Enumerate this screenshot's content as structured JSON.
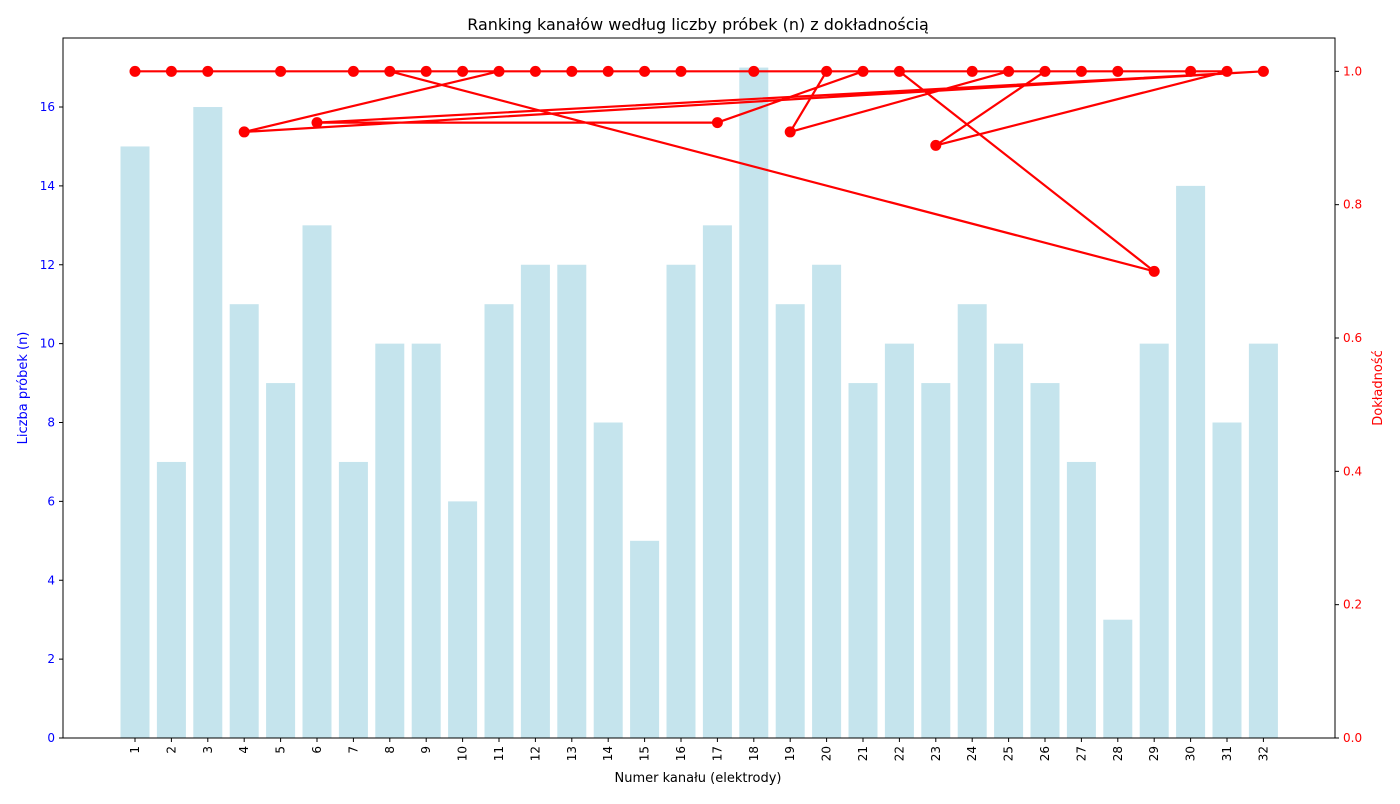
{
  "chart_data": {
    "type": "bar",
    "title": "Ranking kanałów według liczby próbek (n) z dokładnością",
    "xlabel": "Numer kanału (elektrody)",
    "ylabel_left": "Liczba próbek (n)",
    "ylabel_right": "Dokładność",
    "categories": [
      "1",
      "2",
      "3",
      "4",
      "5",
      "6",
      "7",
      "8",
      "9",
      "10",
      "11",
      "12",
      "13",
      "14",
      "15",
      "16",
      "17",
      "18",
      "19",
      "20",
      "21",
      "22",
      "23",
      "24",
      "25",
      "26",
      "27",
      "28",
      "29",
      "30",
      "31",
      "32"
    ],
    "bar_series": {
      "name": "Liczba próbek (n)",
      "color": "#add8e6",
      "values": [
        15,
        7,
        16,
        11,
        9,
        13,
        7,
        10,
        10,
        6,
        11,
        12,
        12,
        8,
        5,
        12,
        13,
        17,
        11,
        12,
        9,
        10,
        9,
        11,
        10,
        9,
        7,
        3,
        10,
        14,
        8,
        10
      ]
    },
    "line_series": {
      "name": "Dokładność",
      "color": "#ff0000",
      "axis": "right",
      "order": [
        18,
        1,
        3,
        2,
        5,
        7,
        8,
        29,
        22,
        14,
        9,
        10,
        16,
        12,
        13,
        15,
        11,
        4,
        32,
        6,
        17,
        21,
        24,
        26,
        23,
        31,
        30,
        28,
        27,
        25,
        19,
        20
      ],
      "values": [
        1.0,
        1.0,
        1.0,
        1.0,
        1.0,
        1.0,
        1.0,
        0.7,
        1.0,
        1.0,
        1.0,
        1.0,
        1.0,
        1.0,
        1.0,
        1.0,
        1.0,
        0.9091,
        1.0,
        0.9231,
        0.9231,
        1.0,
        1.0,
        1.0,
        0.8889,
        1.0,
        1.0,
        1.0,
        1.0,
        1.0,
        0.9091,
        1.0
      ]
    },
    "ylim_left": [
      0,
      17.75
    ],
    "ylim_right": [
      0,
      1.05
    ],
    "yticks_left": [
      0,
      2,
      4,
      6,
      8,
      10,
      12,
      14,
      16
    ],
    "yticks_right": [
      0.0,
      0.2,
      0.4,
      0.6,
      0.8,
      1.0
    ],
    "ytick_labels_right": [
      "0.0",
      "0.2",
      "0.4",
      "0.6",
      "0.8",
      "1.0"
    ],
    "left_axis_color": "#0000ff",
    "right_axis_color": "#ff0000",
    "grid": false,
    "legend": "none"
  }
}
